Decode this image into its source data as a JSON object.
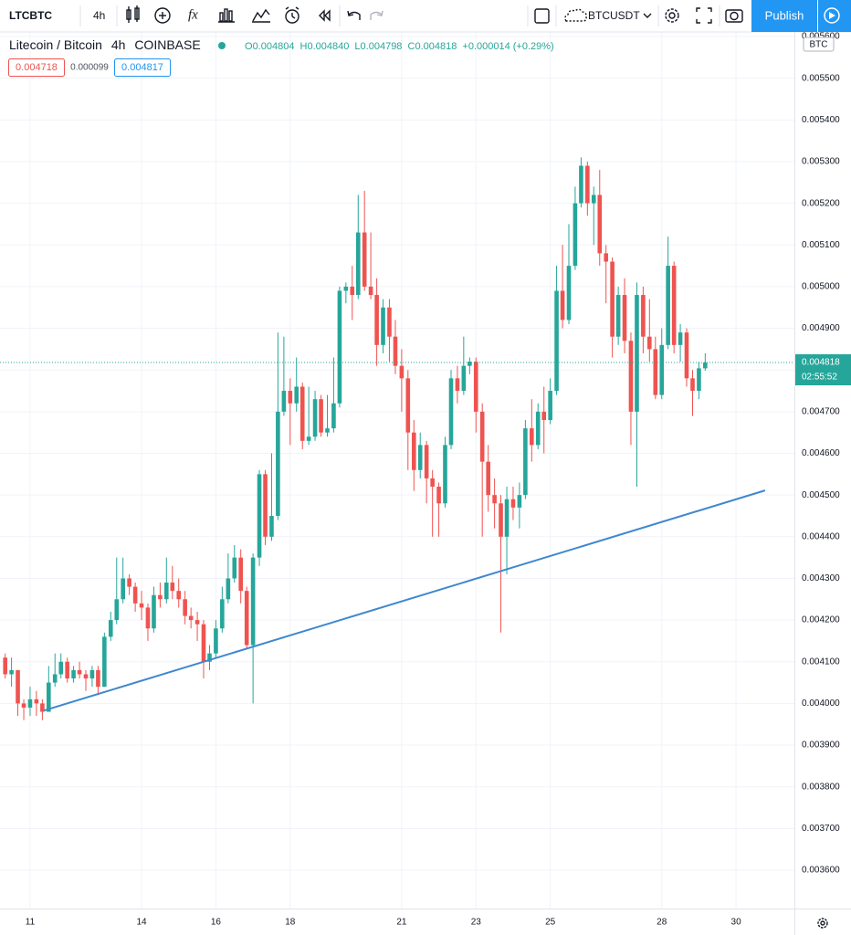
{
  "toolbar": {
    "symbol": "LTCBTC",
    "interval": "4h",
    "compare_symbol": "BTCUSDT",
    "publish": "Publish"
  },
  "legend": {
    "title": "Litecoin / Bitcoin",
    "interval": "4h",
    "exchange": "COINBASE",
    "ohlc": [
      {
        "key": "O",
        "value": "0.004804"
      },
      {
        "key": "H",
        "value": "0.004840"
      },
      {
        "key": "L",
        "value": "0.004798"
      },
      {
        "key": "C",
        "value": "0.004818"
      }
    ],
    "change": "+0.000014 (+0.29%)",
    "bid": "0.004718",
    "spread": "0.000099",
    "ask": "0.004817"
  },
  "chart_data": {
    "type": "candlestick",
    "unit": "BTC",
    "up_color": "#26a69a",
    "down_color": "#ef5350",
    "grid": true,
    "last_price_label": "0.004818",
    "countdown": "02:55:52",
    "xlim": [
      10.19,
      31.57
    ],
    "ylim": [
      0.003508,
      0.005611
    ],
    "xticks": [
      11,
      14,
      16,
      18,
      21,
      23,
      25,
      28,
      30
    ],
    "yticks": [
      {
        "value": 0.0036,
        "label": "0.003600"
      },
      {
        "value": 0.0037,
        "label": "0.003700"
      },
      {
        "value": 0.0038,
        "label": "0.003800"
      },
      {
        "value": 0.0039,
        "label": "0.003900"
      },
      {
        "value": 0.004,
        "label": "0.004000"
      },
      {
        "value": 0.0041,
        "label": "0.004100"
      },
      {
        "value": 0.0042,
        "label": "0.004200"
      },
      {
        "value": 0.0043,
        "label": "0.004300"
      },
      {
        "value": 0.0044,
        "label": "0.004400"
      },
      {
        "value": 0.0045,
        "label": "0.004500"
      },
      {
        "value": 0.0046,
        "label": "0.004600"
      },
      {
        "value": 0.0047,
        "label": "0.004700"
      },
      {
        "value": 0.0048,
        "label": "0.004800"
      },
      {
        "value": 0.0049,
        "label": "0.004900"
      },
      {
        "value": 0.005,
        "label": "0.005000"
      },
      {
        "value": 0.0051,
        "label": "0.005100"
      },
      {
        "value": 0.0052,
        "label": "0.005200"
      },
      {
        "value": 0.0053,
        "label": "0.005300"
      },
      {
        "value": 0.0054,
        "label": "0.005400"
      },
      {
        "value": 0.0055,
        "label": "0.005500"
      },
      {
        "value": 0.0056,
        "label": "0.005600"
      }
    ],
    "trendline": {
      "color": "#3f87cf",
      "x": [
        11.37,
        30.78
      ],
      "y": [
        0.003983,
        0.004511
      ]
    },
    "x": [
      10.33,
      10.5,
      10.67,
      10.83,
      11,
      11.17,
      11.33,
      11.5,
      11.67,
      11.83,
      12,
      12.17,
      12.33,
      12.5,
      12.67,
      12.83,
      13,
      13.17,
      13.33,
      13.5,
      13.67,
      13.83,
      14,
      14.17,
      14.33,
      14.5,
      14.67,
      14.83,
      15,
      15.17,
      15.33,
      15.5,
      15.67,
      15.83,
      16,
      16.17,
      16.33,
      16.5,
      16.67,
      16.83,
      17,
      17.17,
      17.33,
      17.5,
      17.67,
      17.83,
      18,
      18.17,
      18.33,
      18.5,
      18.67,
      18.83,
      19,
      19.17,
      19.33,
      19.5,
      19.67,
      19.83,
      20,
      20.17,
      20.33,
      20.5,
      20.67,
      20.83,
      21,
      21.17,
      21.33,
      21.5,
      21.67,
      21.83,
      22,
      22.17,
      22.33,
      22.5,
      22.67,
      22.83,
      23,
      23.17,
      23.33,
      23.5,
      23.67,
      23.83,
      24,
      24.17,
      24.33,
      24.5,
      24.67,
      24.83,
      25,
      25.17,
      25.33,
      25.5,
      25.67,
      25.83,
      26,
      26.17,
      26.33,
      26.5,
      26.67,
      26.83,
      27,
      27.17,
      27.33,
      27.5,
      27.67,
      27.83,
      28,
      28.17,
      28.33,
      28.5,
      28.67,
      28.83,
      29,
      29.17
    ],
    "ohlc": [
      [
        0.00411,
        0.00412,
        0.00406,
        0.00407
      ],
      [
        0.00407,
        0.00411,
        0.00404,
        0.00408
      ],
      [
        0.00408,
        0.00408,
        0.00397,
        0.004
      ],
      [
        0.004,
        0.00401,
        0.00396,
        0.00399
      ],
      [
        0.00399,
        0.00404,
        0.00397,
        0.00401
      ],
      [
        0.00401,
        0.00403,
        0.00397,
        0.004
      ],
      [
        0.004,
        0.00401,
        0.00396,
        0.00398
      ],
      [
        0.00398,
        0.00409,
        0.00398,
        0.00405
      ],
      [
        0.00405,
        0.00412,
        0.00404,
        0.00407
      ],
      [
        0.00407,
        0.00412,
        0.00406,
        0.0041
      ],
      [
        0.0041,
        0.00411,
        0.00405,
        0.00406
      ],
      [
        0.00406,
        0.00409,
        0.00405,
        0.00408
      ],
      [
        0.00408,
        0.0041,
        0.00406,
        0.00407
      ],
      [
        0.00407,
        0.00408,
        0.00403,
        0.00406
      ],
      [
        0.00406,
        0.00409,
        0.00404,
        0.00408
      ],
      [
        0.00408,
        0.00409,
        0.00402,
        0.00404
      ],
      [
        0.00404,
        0.00417,
        0.00404,
        0.00416
      ],
      [
        0.00416,
        0.00422,
        0.00415,
        0.0042
      ],
      [
        0.0042,
        0.00435,
        0.00419,
        0.00425
      ],
      [
        0.00425,
        0.00435,
        0.00424,
        0.0043
      ],
      [
        0.0043,
        0.00431,
        0.00426,
        0.00428
      ],
      [
        0.00428,
        0.00429,
        0.00422,
        0.00424
      ],
      [
        0.00424,
        0.00427,
        0.0042,
        0.00423
      ],
      [
        0.00423,
        0.00424,
        0.00415,
        0.00418
      ],
      [
        0.00418,
        0.00428,
        0.00417,
        0.00426
      ],
      [
        0.00426,
        0.00429,
        0.00423,
        0.00425
      ],
      [
        0.00425,
        0.00435,
        0.00424,
        0.00429
      ],
      [
        0.00429,
        0.00433,
        0.00425,
        0.00427
      ],
      [
        0.00427,
        0.0043,
        0.00423,
        0.00425
      ],
      [
        0.00425,
        0.00427,
        0.00419,
        0.00421
      ],
      [
        0.00421,
        0.00423,
        0.00418,
        0.0042
      ],
      [
        0.0042,
        0.00422,
        0.00415,
        0.00419
      ],
      [
        0.00419,
        0.0042,
        0.00406,
        0.0041
      ],
      [
        0.0041,
        0.00414,
        0.00408,
        0.00412
      ],
      [
        0.00412,
        0.0042,
        0.00411,
        0.00418
      ],
      [
        0.00418,
        0.00428,
        0.00417,
        0.00425
      ],
      [
        0.00425,
        0.00436,
        0.00424,
        0.0043
      ],
      [
        0.0043,
        0.00438,
        0.00429,
        0.00435
      ],
      [
        0.00435,
        0.00437,
        0.00424,
        0.00427
      ],
      [
        0.00427,
        0.00428,
        0.00413,
        0.00414
      ],
      [
        0.00414,
        0.00436,
        0.004,
        0.00435
      ],
      [
        0.00435,
        0.00456,
        0.00433,
        0.00455
      ],
      [
        0.00455,
        0.00456,
        0.00438,
        0.0044
      ],
      [
        0.0044,
        0.0046,
        0.00439,
        0.00445
      ],
      [
        0.00445,
        0.00489,
        0.00444,
        0.0047
      ],
      [
        0.0047,
        0.00488,
        0.00469,
        0.00475
      ],
      [
        0.00475,
        0.00478,
        0.00462,
        0.00472
      ],
      [
        0.00472,
        0.00483,
        0.0047,
        0.00476
      ],
      [
        0.00476,
        0.00477,
        0.00461,
        0.00463
      ],
      [
        0.00463,
        0.00476,
        0.00462,
        0.00464
      ],
      [
        0.00464,
        0.00475,
        0.00463,
        0.00473
      ],
      [
        0.00473,
        0.00474,
        0.00464,
        0.00465
      ],
      [
        0.00465,
        0.00474,
        0.00464,
        0.00466
      ],
      [
        0.00466,
        0.00483,
        0.00465,
        0.00472
      ],
      [
        0.00472,
        0.005,
        0.00471,
        0.00499
      ],
      [
        0.00499,
        0.00501,
        0.00496,
        0.005
      ],
      [
        0.005,
        0.00505,
        0.00492,
        0.00498
      ],
      [
        0.00498,
        0.00522,
        0.00497,
        0.00513
      ],
      [
        0.00513,
        0.00523,
        0.00499,
        0.005
      ],
      [
        0.005,
        0.00513,
        0.00497,
        0.00498
      ],
      [
        0.00498,
        0.00502,
        0.00481,
        0.00486
      ],
      [
        0.00486,
        0.00497,
        0.00484,
        0.00495
      ],
      [
        0.00495,
        0.00497,
        0.00482,
        0.00488
      ],
      [
        0.00488,
        0.00492,
        0.00479,
        0.00481
      ],
      [
        0.00481,
        0.00485,
        0.0047,
        0.00478
      ],
      [
        0.00478,
        0.0048,
        0.00456,
        0.00465
      ],
      [
        0.00465,
        0.00468,
        0.00451,
        0.00456
      ],
      [
        0.00456,
        0.00465,
        0.00454,
        0.00462
      ],
      [
        0.00462,
        0.00463,
        0.00448,
        0.00454
      ],
      [
        0.00454,
        0.00456,
        0.0044,
        0.00452
      ],
      [
        0.00452,
        0.00453,
        0.0044,
        0.00448
      ],
      [
        0.00448,
        0.00464,
        0.00447,
        0.00462
      ],
      [
        0.00462,
        0.0048,
        0.00461,
        0.00478
      ],
      [
        0.00478,
        0.00481,
        0.00472,
        0.00475
      ],
      [
        0.00475,
        0.00488,
        0.00474,
        0.00481
      ],
      [
        0.00481,
        0.00483,
        0.00479,
        0.00482
      ],
      [
        0.00482,
        0.00483,
        0.00465,
        0.0047
      ],
      [
        0.0047,
        0.00472,
        0.0044,
        0.00458
      ],
      [
        0.00458,
        0.00462,
        0.00446,
        0.0045
      ],
      [
        0.0045,
        0.00454,
        0.00442,
        0.00448
      ],
      [
        0.00448,
        0.0045,
        0.00417,
        0.0044
      ],
      [
        0.0044,
        0.00452,
        0.00431,
        0.00449
      ],
      [
        0.00449,
        0.00452,
        0.00444,
        0.00447
      ],
      [
        0.00447,
        0.00453,
        0.00442,
        0.0045
      ],
      [
        0.0045,
        0.00468,
        0.00449,
        0.00466
      ],
      [
        0.00466,
        0.00473,
        0.00458,
        0.00462
      ],
      [
        0.00462,
        0.00472,
        0.00461,
        0.0047
      ],
      [
        0.0047,
        0.00476,
        0.0046,
        0.00468
      ],
      [
        0.00468,
        0.00478,
        0.00467,
        0.00475
      ],
      [
        0.00475,
        0.00505,
        0.00474,
        0.00499
      ],
      [
        0.00499,
        0.0051,
        0.0049,
        0.00492
      ],
      [
        0.00492,
        0.00515,
        0.00491,
        0.00505
      ],
      [
        0.00505,
        0.00524,
        0.00504,
        0.0052
      ],
      [
        0.0052,
        0.00531,
        0.00519,
        0.00529
      ],
      [
        0.00529,
        0.0053,
        0.00517,
        0.0052
      ],
      [
        0.0052,
        0.00524,
        0.0051,
        0.00522
      ],
      [
        0.00522,
        0.00528,
        0.00505,
        0.00508
      ],
      [
        0.00508,
        0.0051,
        0.00496,
        0.00506
      ],
      [
        0.00506,
        0.00507,
        0.00483,
        0.00488
      ],
      [
        0.00488,
        0.005,
        0.00486,
        0.00498
      ],
      [
        0.00498,
        0.00502,
        0.00484,
        0.00487
      ],
      [
        0.00487,
        0.00489,
        0.00462,
        0.0047
      ],
      [
        0.0047,
        0.00501,
        0.00452,
        0.00498
      ],
      [
        0.00498,
        0.005,
        0.00484,
        0.00488
      ],
      [
        0.00488,
        0.00497,
        0.00482,
        0.00485
      ],
      [
        0.00485,
        0.00488,
        0.00473,
        0.00474
      ],
      [
        0.00474,
        0.0049,
        0.00473,
        0.00486
      ],
      [
        0.00486,
        0.00512,
        0.00485,
        0.00505
      ],
      [
        0.00505,
        0.00506,
        0.00484,
        0.00486
      ],
      [
        0.00486,
        0.00491,
        0.00482,
        0.00489
      ],
      [
        0.00489,
        0.0049,
        0.00476,
        0.00478
      ],
      [
        0.00478,
        0.0048,
        0.00469,
        0.00475
      ],
      [
        0.00475,
        0.00482,
        0.00473,
        0.004804
      ],
      [
        0.004804,
        0.00484,
        0.004798,
        0.004818
      ]
    ]
  }
}
